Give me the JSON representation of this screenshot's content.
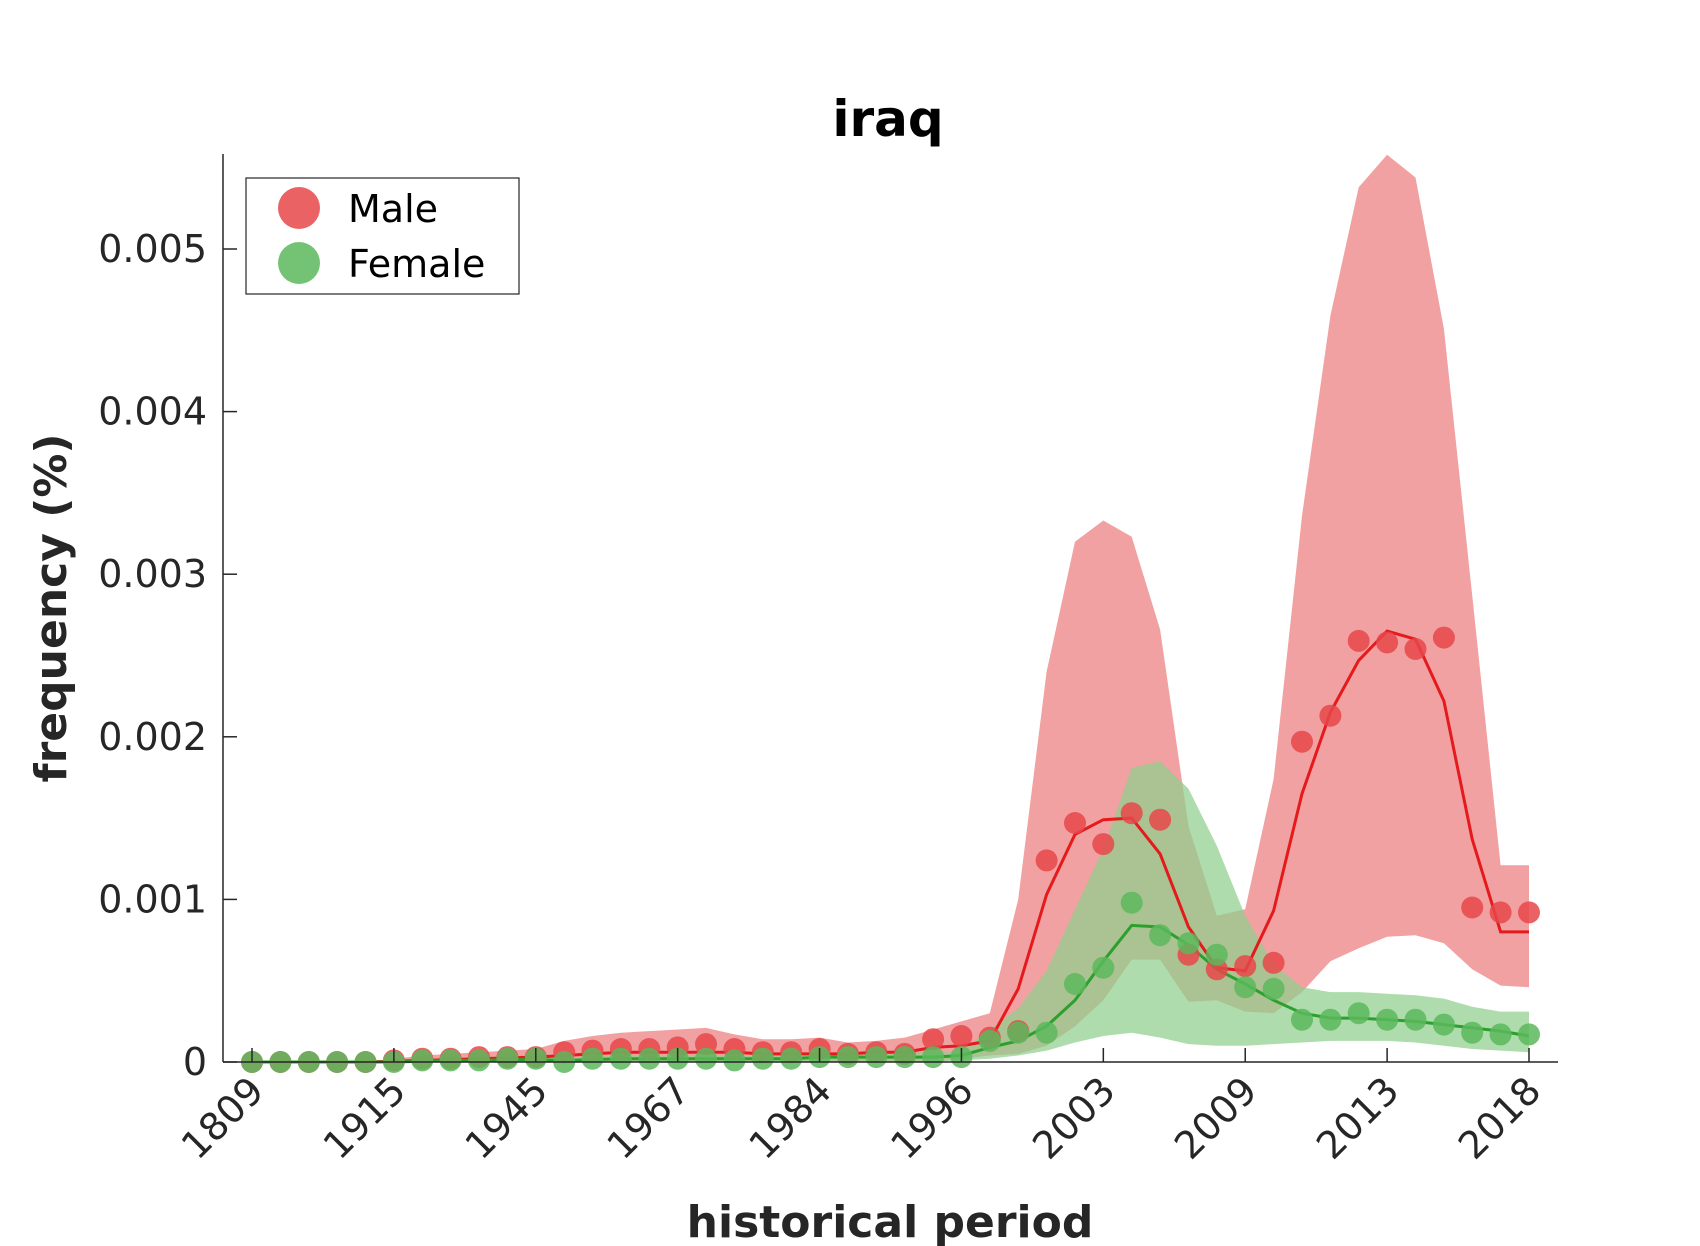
{
  "chart_data": {
    "type": "line",
    "title": "iraq",
    "xlabel": "historical period",
    "ylabel": "frequency (%)",
    "ylim": [
      0,
      0.0056
    ],
    "y_ticks": [
      0,
      0.001,
      0.002,
      0.003,
      0.004,
      0.005
    ],
    "y_tick_labels": [
      "0",
      "0.001",
      "0.002",
      "0.003",
      "0.004",
      "0.005"
    ],
    "x_tick_labels": [
      "1809",
      "1915",
      "1945",
      "1967",
      "1984",
      "1996",
      "2003",
      "2009",
      "2013",
      "2018"
    ],
    "x_tick_positions": [
      1,
      6,
      11,
      16,
      21,
      26,
      31,
      36,
      41,
      46
    ],
    "x": [
      1,
      2,
      3,
      4,
      5,
      6,
      7,
      8,
      9,
      10,
      11,
      12,
      13,
      14,
      15,
      16,
      17,
      18,
      19,
      20,
      21,
      22,
      23,
      24,
      25,
      26,
      27,
      28,
      29,
      30,
      31,
      32,
      33,
      34,
      35,
      36,
      37,
      38,
      39,
      40,
      41,
      42,
      43,
      44,
      45,
      46
    ],
    "legend_position": "top-left",
    "grid": false,
    "series": [
      {
        "name": "Male",
        "color": "#e41a1c",
        "marker_color": "#e8474a",
        "band_color": "#ee8688",
        "points": [
          0,
          0,
          0,
          0,
          0,
          1e-05,
          2e-05,
          2e-05,
          3e-05,
          3e-05,
          3e-05,
          6e-05,
          7e-05,
          8e-05,
          8e-05,
          9e-05,
          0.00011,
          8e-05,
          6e-05,
          6e-05,
          8e-05,
          5e-05,
          6e-05,
          5e-05,
          0.00014,
          0.00016,
          0.00015,
          0.00019,
          0.00124,
          0.00147,
          0.00134,
          0.00153,
          0.00149,
          0.00066,
          0.00057,
          0.00059,
          0.00061,
          0.00197,
          0.00213,
          0.00259,
          0.00258,
          0.00254,
          0.00261,
          0.00095,
          0.00092,
          0.00092
        ],
        "line": [
          0,
          0,
          0,
          0,
          0,
          5e-06,
          1e-05,
          1.5e-05,
          2e-05,
          2.5e-05,
          3e-05,
          4e-05,
          5e-05,
          6e-05,
          6e-05,
          6e-05,
          6e-05,
          6e-05,
          5e-05,
          5e-05,
          5e-05,
          5e-05,
          6e-05,
          6e-05,
          9e-05,
          0.0001,
          0.00013,
          0.00045,
          0.00103,
          0.0014,
          0.00149,
          0.0015,
          0.00128,
          0.00083,
          0.00058,
          0.00056,
          0.00093,
          0.00165,
          0.00215,
          0.00247,
          0.00265,
          0.0026,
          0.00222,
          0.00137,
          0.0008,
          0.0008
        ],
        "band_upper": [
          0,
          0,
          0,
          0,
          0,
          2e-05,
          4e-05,
          5e-05,
          6e-05,
          7e-05,
          8e-05,
          0.00013,
          0.00016,
          0.00018,
          0.00019,
          0.0002,
          0.00021,
          0.00017,
          0.00014,
          0.00014,
          0.00015,
          0.00012,
          0.00013,
          0.00015,
          0.0002,
          0.00025,
          0.0003,
          0.001,
          0.0024,
          0.0032,
          0.00333,
          0.00323,
          0.00266,
          0.00145,
          0.0009,
          0.00094,
          0.00174,
          0.00336,
          0.00459,
          0.00538,
          0.00558,
          0.00544,
          0.00451,
          0.00287,
          0.00121,
          0.00121
        ],
        "band_lower": [
          0,
          0,
          0,
          0,
          0,
          0,
          0,
          0,
          0,
          0,
          0,
          0,
          0,
          0,
          0,
          0,
          0,
          0,
          0,
          0,
          0,
          0,
          0,
          0,
          0,
          2e-05,
          4e-05,
          5e-05,
          0.0001,
          0.00022,
          0.00038,
          0.00063,
          0.00063,
          0.00037,
          0.00038,
          0.00031,
          0.0003,
          0.00043,
          0.00062,
          0.0007,
          0.00077,
          0.00078,
          0.00073,
          0.00057,
          0.00047,
          0.00046
        ]
      },
      {
        "name": "Female",
        "color": "#2ca02c",
        "marker_color": "#5cb85c",
        "band_color": "#8fcf8c",
        "points": [
          0,
          0,
          0,
          0,
          0,
          0,
          1e-05,
          1e-05,
          1e-05,
          2e-05,
          2e-05,
          0,
          2e-05,
          2e-05,
          2e-05,
          2e-05,
          2e-05,
          1e-05,
          2e-05,
          2e-05,
          3e-05,
          3e-05,
          3e-05,
          3e-05,
          3e-05,
          3e-05,
          0.00013,
          0.00018,
          0.00018,
          0.00048,
          0.00058,
          0.00098,
          0.00078,
          0.00073,
          0.00066,
          0.00046,
          0.00045,
          0.00026,
          0.00026,
          0.0003,
          0.00026,
          0.00026,
          0.00023,
          0.00018,
          0.00017,
          0.00017
        ],
        "line": [
          0,
          0,
          0,
          0,
          0,
          0,
          5e-06,
          1e-05,
          1e-05,
          1.5e-05,
          1.5e-05,
          1e-05,
          1.5e-05,
          2e-05,
          2e-05,
          2e-05,
          2e-05,
          2e-05,
          2e-05,
          2e-05,
          3e-05,
          3e-05,
          3e-05,
          3e-05,
          3e-05,
          4e-05,
          9e-05,
          0.00013,
          0.00022,
          0.00038,
          0.00062,
          0.00084,
          0.00083,
          0.00072,
          0.00057,
          0.00048,
          0.00038,
          0.0003,
          0.00027,
          0.00027,
          0.00026,
          0.00025,
          0.00023,
          0.00021,
          0.00019,
          0.00016
        ],
        "band_upper": [
          0,
          0,
          0,
          0,
          0,
          0,
          1e-05,
          2e-05,
          2e-05,
          3e-05,
          3e-05,
          2e-05,
          3e-05,
          4e-05,
          4e-05,
          4e-05,
          4e-05,
          4e-05,
          4e-05,
          4e-05,
          5e-05,
          5e-05,
          6e-05,
          6e-05,
          6e-05,
          7e-05,
          0.0002,
          0.00033,
          0.00056,
          0.00094,
          0.00131,
          0.00181,
          0.00185,
          0.00168,
          0.00133,
          0.0009,
          0.0006,
          0.00046,
          0.00043,
          0.00043,
          0.00042,
          0.00041,
          0.00039,
          0.00034,
          0.00031,
          0.00031
        ],
        "band_lower": [
          0,
          0,
          0,
          0,
          0,
          0,
          0,
          0,
          0,
          0,
          0,
          0,
          0,
          0,
          0,
          0,
          0,
          0,
          0,
          0,
          0,
          0,
          0,
          0,
          0,
          1e-05,
          2e-05,
          4e-05,
          7e-05,
          0.00012,
          0.00016,
          0.00018,
          0.00015,
          0.00011,
          0.0001,
          0.0001,
          0.00011,
          0.00012,
          0.00013,
          0.00013,
          0.00013,
          0.00012,
          0.0001,
          8e-05,
          7e-05,
          6e-05
        ]
      }
    ]
  }
}
